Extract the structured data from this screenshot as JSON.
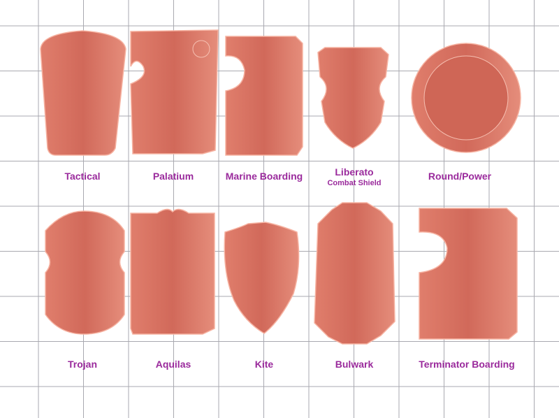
{
  "colors": {
    "shield_fill": "#d66f5f",
    "shield_edge": "#f3a08e",
    "label": "#9a2a9c",
    "grid": "#a9a9b0"
  },
  "shields": [
    {
      "name": "Tactical"
    },
    {
      "name": "Palatium"
    },
    {
      "name": "Marine Boarding"
    },
    {
      "name": "Liberato",
      "subtitle": "Combat Shield"
    },
    {
      "name": "Round/Power"
    },
    {
      "name": "Trojan"
    },
    {
      "name": "Aquilas"
    },
    {
      "name": "Kite"
    },
    {
      "name": "Bulwark"
    },
    {
      "name": "Terminator Boarding"
    }
  ]
}
